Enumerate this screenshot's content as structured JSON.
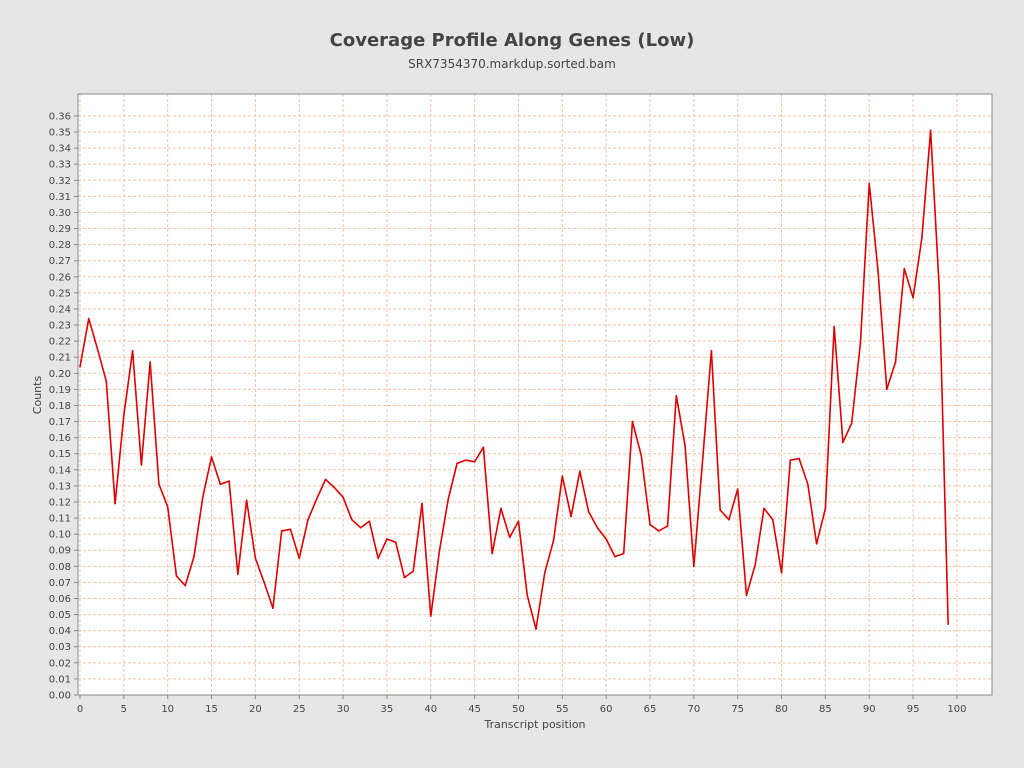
{
  "title": "Coverage Profile Along Genes (Low)",
  "subtitle": "SRX7354370.markdup.sorted.bam",
  "colors": {
    "background": "#e6e6e6",
    "plot_background": "#ffffff",
    "grid": "#f2c4a8",
    "series": "#dd0000"
  },
  "chart_data": {
    "type": "line",
    "title": "Coverage Profile Along Genes (Low)",
    "subtitle": "SRX7354370.markdup.sorted.bam",
    "xlabel": "Transcript position",
    "ylabel": "Counts",
    "xlim": [
      0,
      104
    ],
    "ylim": [
      0,
      0.37
    ],
    "grid": true,
    "legend": "none",
    "x_ticks": [
      0,
      5,
      10,
      15,
      20,
      25,
      30,
      35,
      40,
      45,
      50,
      55,
      60,
      65,
      70,
      75,
      80,
      85,
      90,
      95,
      100
    ],
    "y_ticks": [
      "0.00",
      "0.01",
      "0.02",
      "0.03",
      "0.04",
      "0.05",
      "0.06",
      "0.07",
      "0.08",
      "0.09",
      "0.10",
      "0.11",
      "0.12",
      "0.13",
      "0.14",
      "0.15",
      "0.16",
      "0.17",
      "0.18",
      "0.19",
      "0.20",
      "0.21",
      "0.22",
      "0.23",
      "0.24",
      "0.25",
      "0.26",
      "0.27",
      "0.28",
      "0.29",
      "0.30",
      "0.31",
      "0.32",
      "0.33",
      "0.34",
      "0.35",
      "0.36"
    ],
    "series": [
      {
        "x": [
          0,
          1,
          2,
          3,
          4,
          5,
          6,
          7,
          8,
          9,
          10,
          11,
          12,
          13,
          14,
          15,
          16,
          17,
          18,
          19,
          20,
          21,
          22,
          23,
          24,
          25,
          26,
          27,
          28,
          29,
          30,
          31,
          32,
          33,
          34,
          35,
          36,
          37,
          38,
          39,
          40,
          41,
          42,
          43,
          44,
          45,
          46,
          47,
          48,
          49,
          50,
          51,
          52,
          53,
          54,
          55,
          56,
          57,
          58,
          59,
          60,
          61,
          62,
          63,
          64,
          65,
          66,
          67,
          68,
          69,
          70,
          71,
          72,
          73,
          74,
          75,
          76,
          77,
          78,
          79,
          80,
          81,
          82,
          83,
          84,
          85,
          86,
          87,
          88,
          89,
          90,
          91,
          92,
          93,
          94,
          95,
          96,
          97,
          98,
          99
        ],
        "y": [
          0.204,
          0.234,
          0.215,
          0.195,
          0.119,
          0.174,
          0.214,
          0.143,
          0.207,
          0.131,
          0.117,
          0.074,
          0.068,
          0.086,
          0.123,
          0.148,
          0.131,
          0.133,
          0.075,
          0.121,
          0.085,
          0.07,
          0.054,
          0.102,
          0.103,
          0.085,
          0.109,
          0.122,
          0.134,
          0.129,
          0.123,
          0.109,
          0.104,
          0.108,
          0.085,
          0.097,
          0.095,
          0.073,
          0.077,
          0.119,
          0.049,
          0.09,
          0.122,
          0.144,
          0.146,
          0.145,
          0.154,
          0.088,
          0.116,
          0.098,
          0.108,
          0.062,
          0.041,
          0.076,
          0.096,
          0.136,
          0.111,
          0.139,
          0.114,
          0.104,
          0.097,
          0.086,
          0.088,
          0.17,
          0.149,
          0.106,
          0.102,
          0.105,
          0.186,
          0.155,
          0.08,
          0.146,
          0.214,
          0.115,
          0.109,
          0.128,
          0.062,
          0.081,
          0.116,
          0.109,
          0.076,
          0.146,
          0.147,
          0.131,
          0.094,
          0.116,
          0.229,
          0.157,
          0.169,
          0.219,
          0.318,
          0.264,
          0.19,
          0.207,
          0.265,
          0.247,
          0.284,
          0.351,
          0.251,
          0.044
        ]
      }
    ]
  }
}
